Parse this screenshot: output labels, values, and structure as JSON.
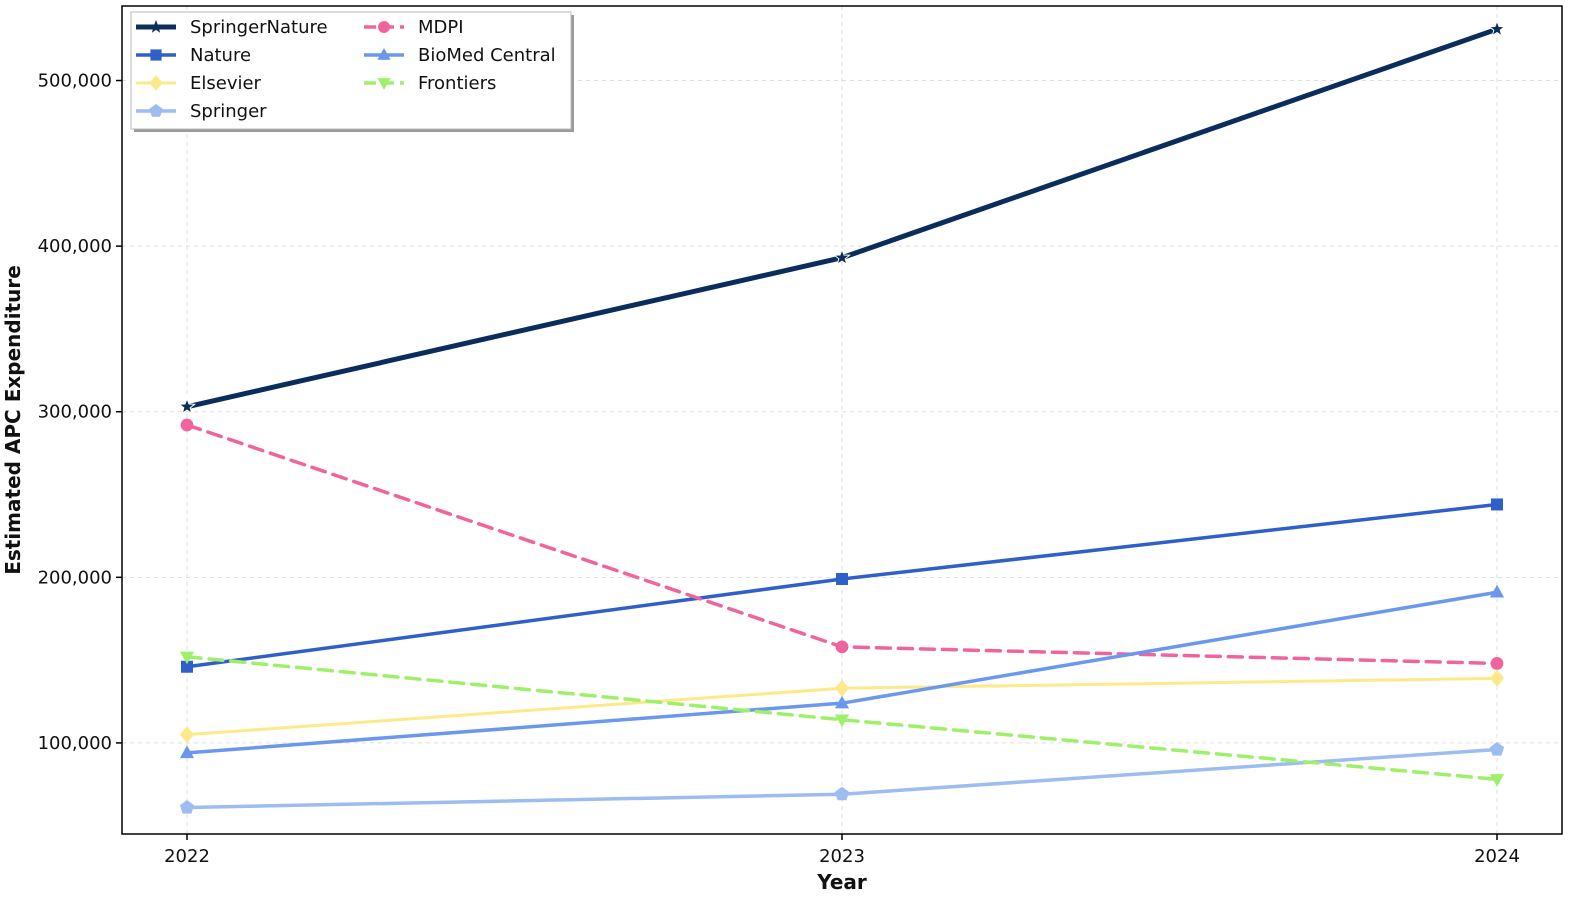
{
  "chart_data": {
    "type": "line",
    "xlabel": "Year",
    "ylabel": "Estimated APC Expenditure",
    "categories": [
      "2022",
      "2023",
      "2024"
    ],
    "ylim": [
      45000,
      545000
    ],
    "yticks": [
      100000,
      200000,
      300000,
      400000,
      500000
    ],
    "ytick_labels": [
      "100,000",
      "200,000",
      "300,000",
      "400,000",
      "500,000"
    ],
    "grid": true,
    "legend_position": "top-left",
    "legend_columns": 2,
    "series": [
      {
        "name": "SpringerNature",
        "values": [
          303000,
          393000,
          531000
        ],
        "color": "#0b2d5c",
        "marker": "star",
        "dash": "solid",
        "width": 5
      },
      {
        "name": "Nature",
        "values": [
          146000,
          199000,
          244000
        ],
        "color": "#2f5fc9",
        "marker": "square",
        "dash": "solid",
        "width": 3.5
      },
      {
        "name": "Elsevier",
        "values": [
          105000,
          133000,
          139000
        ],
        "color": "#fde98a",
        "marker": "diamond",
        "dash": "solid",
        "width": 3
      },
      {
        "name": "Springer",
        "values": [
          61000,
          69000,
          96000
        ],
        "color": "#9dbcf0",
        "marker": "pentagon",
        "dash": "solid",
        "width": 3.5
      },
      {
        "name": "MDPI",
        "values": [
          292000,
          158000,
          148000
        ],
        "color": "#f0649e",
        "marker": "circle",
        "dash": "dashed",
        "width": 3.5
      },
      {
        "name": "BioMed Central",
        "values": [
          94000,
          124000,
          191000
        ],
        "color": "#6b98ec",
        "marker": "triangle-up",
        "dash": "solid",
        "width": 3.5
      },
      {
        "name": "Frontiers",
        "values": [
          152000,
          114000,
          78000
        ],
        "color": "#9ef06a",
        "marker": "triangle-down",
        "dash": "dashed",
        "width": 3.5
      }
    ]
  }
}
